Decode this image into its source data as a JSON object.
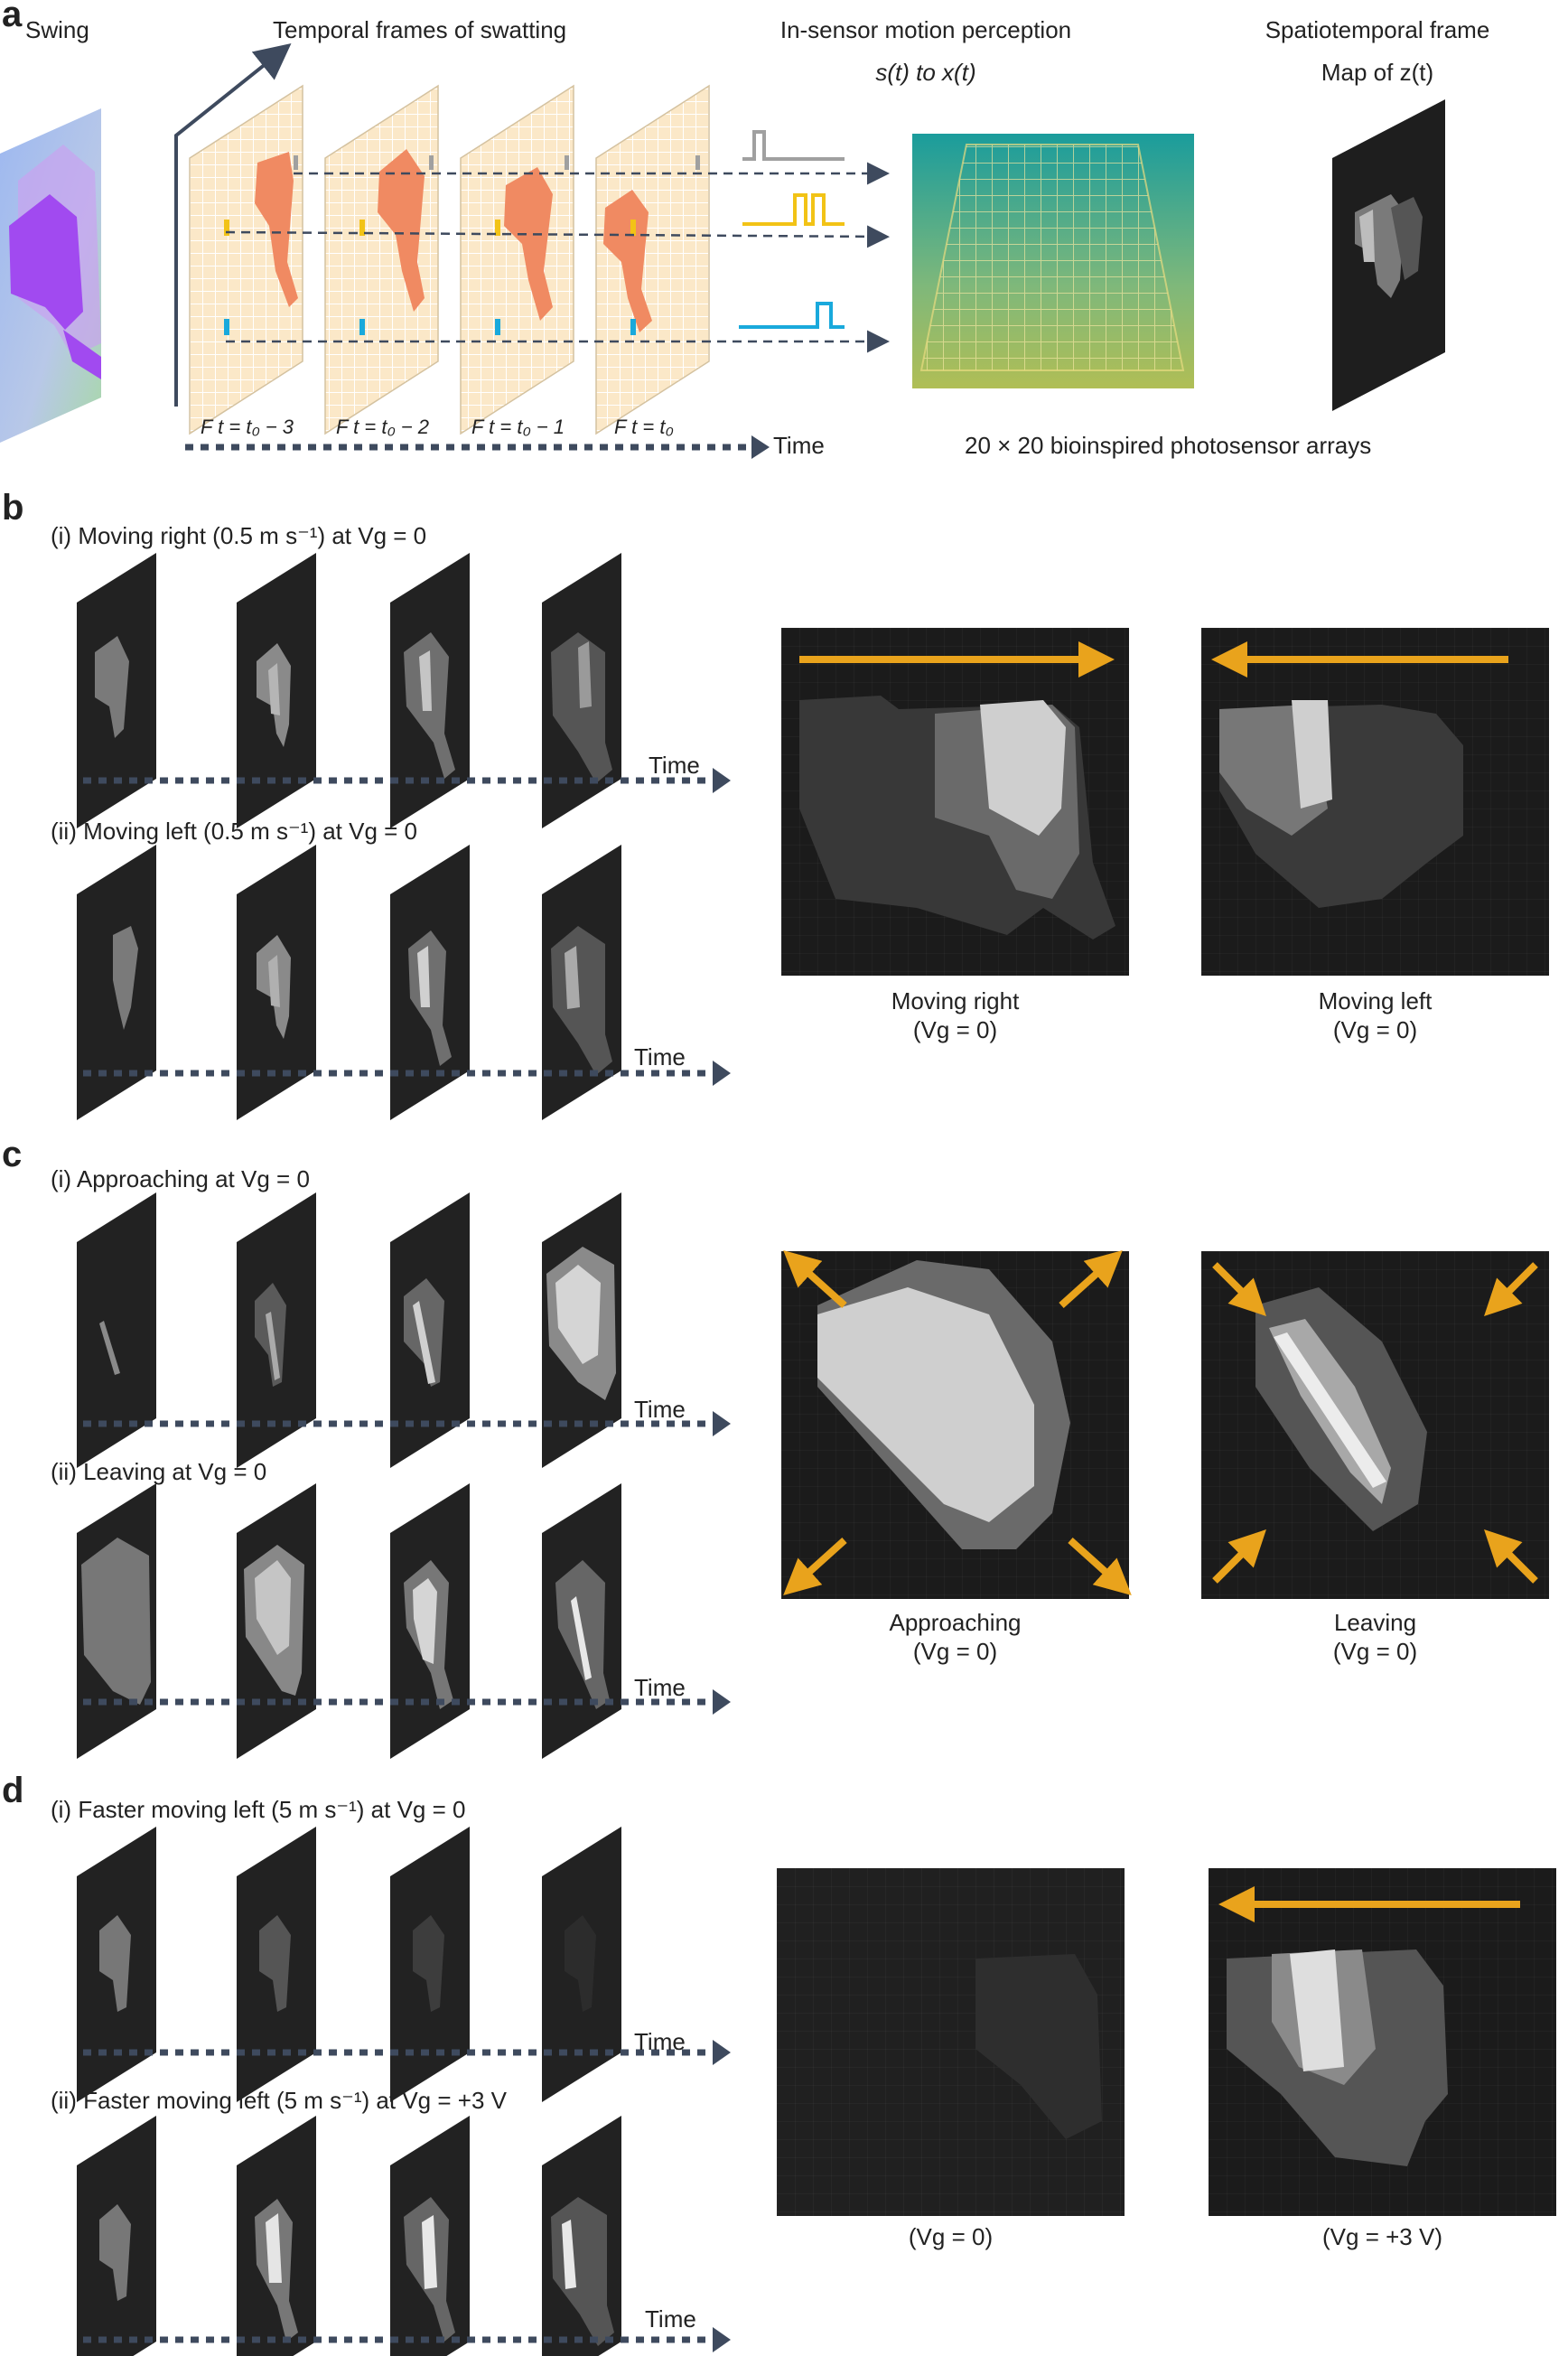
{
  "panels": {
    "a": {
      "letter": "a",
      "swing_label": "Swing",
      "temporal_label": "Temporal frames of swatting",
      "insensor_label_1": "In-sensor motion perception",
      "insensor_label_2": "s(t) to x(t)",
      "spatiotemporal_label_1": "Spatiotemporal frame",
      "spatiotemporal_label_2": "Map of z(t)",
      "frame_labels": [
        "F t = t₀ − 3",
        "F t = t₀ − 2",
        "F t = t₀ − 1",
        "F t = t₀"
      ],
      "time_label": "Time",
      "array_label": "20 × 20 bioinspired photosensor arrays"
    },
    "b": {
      "letter": "b",
      "row1_label": "(i) Moving right (0.5 m s⁻¹) at Vg = 0",
      "row2_label": "(ii) Moving left (0.5 m s⁻¹) at Vg = 0",
      "time_label": "Time",
      "map1_caption_1": "Moving right",
      "map1_caption_2": "(Vg = 0)",
      "map2_caption_1": "Moving left",
      "map2_caption_2": "(Vg = 0)"
    },
    "c": {
      "letter": "c",
      "row1_label": "(i) Approaching at Vg = 0",
      "row2_label": "(ii) Leaving at Vg = 0",
      "time_label": "Time",
      "map1_caption_1": "Approaching",
      "map1_caption_2": "(Vg = 0)",
      "map2_caption_1": "Leaving",
      "map2_caption_2": "(Vg = 0)"
    },
    "d": {
      "letter": "d",
      "row1_label": "(i) Faster moving left (5 m s⁻¹) at Vg = 0",
      "row2_label": "(ii) Faster moving left (5 m s⁻¹) at Vg = +3 V",
      "time_label": "Time",
      "map1_caption": "(Vg = 0)",
      "map2_caption": "(Vg = +3 V)"
    }
  },
  "colors": {
    "arrow_orange": "#e9a31c",
    "dashed_arrow": "#3e4a5e",
    "frame_bg": "#fbe8c8",
    "swatter": "#f08a62",
    "pulse_gray": "#a0a0a0",
    "pulse_yellow": "#f2c316",
    "pulse_blue": "#19a9dc"
  }
}
